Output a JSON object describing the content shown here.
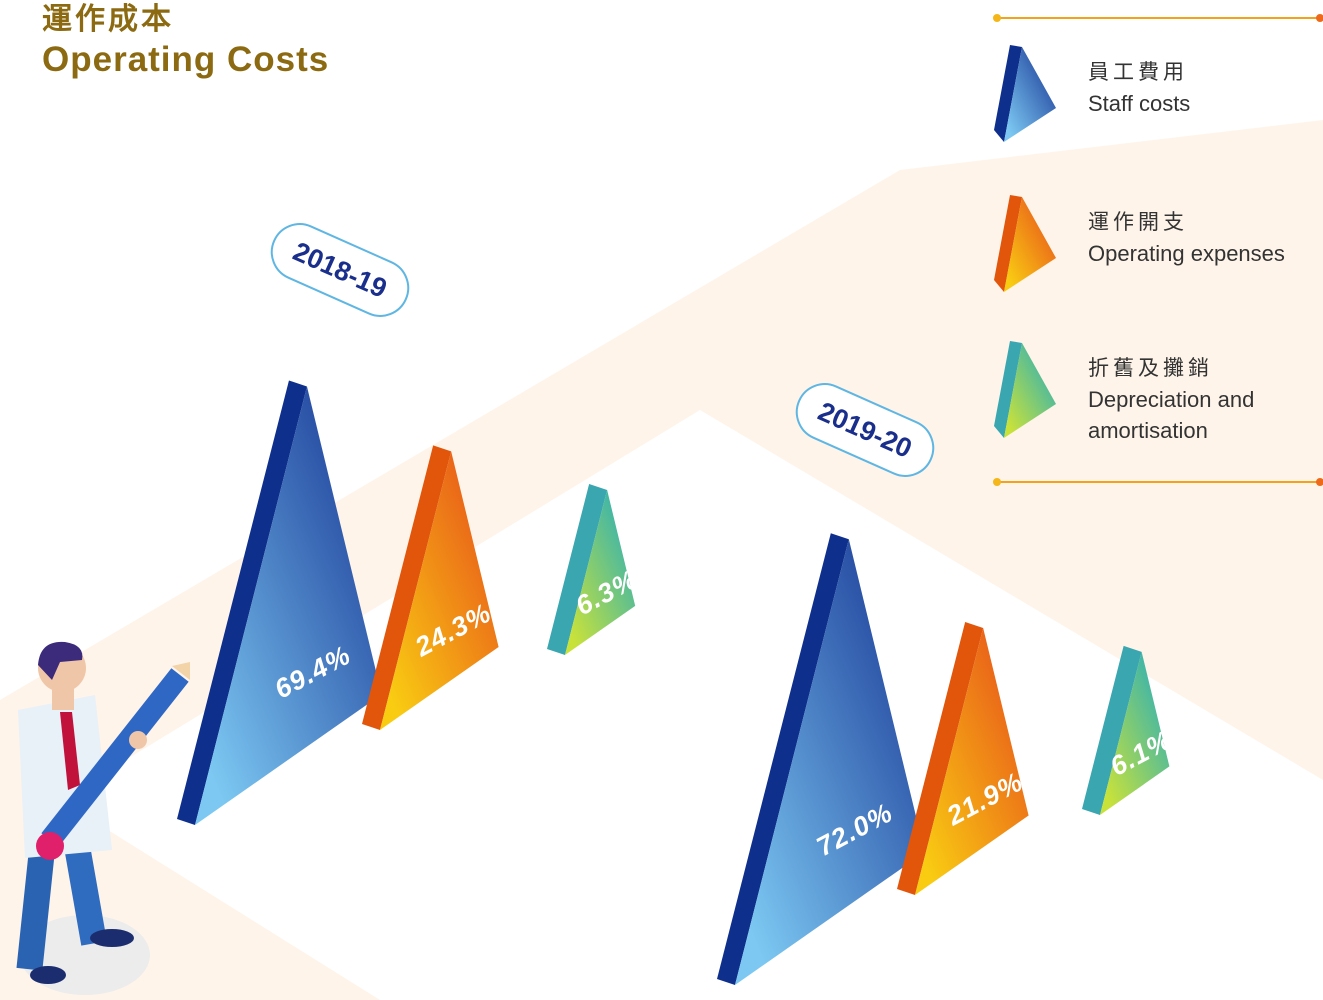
{
  "chart_data": {
    "type": "triangle",
    "title": "運作成本",
    "subtitle": "Operating Costs",
    "categories": [
      "2018-19",
      "2019-20"
    ],
    "series": [
      {
        "name_zh": "員工費用",
        "name": "Staff costs",
        "color": "#1e3f9a",
        "values": [
          69.4,
          72.0
        ],
        "value_labels": [
          "69.4%",
          "72.0%"
        ]
      },
      {
        "name_zh": "運作開支",
        "name": "Operating expenses",
        "color": "#e8561a",
        "values": [
          24.3,
          21.9
        ],
        "value_labels": [
          "24.3%",
          "21.9%"
        ]
      },
      {
        "name_zh": "折舊及攤銷",
        "name": "Depreciation and amortisation",
        "color": "#2fb0b5",
        "values": [
          6.3,
          6.1
        ],
        "value_labels": [
          "6.3%",
          "6.1%"
        ]
      }
    ]
  }
}
